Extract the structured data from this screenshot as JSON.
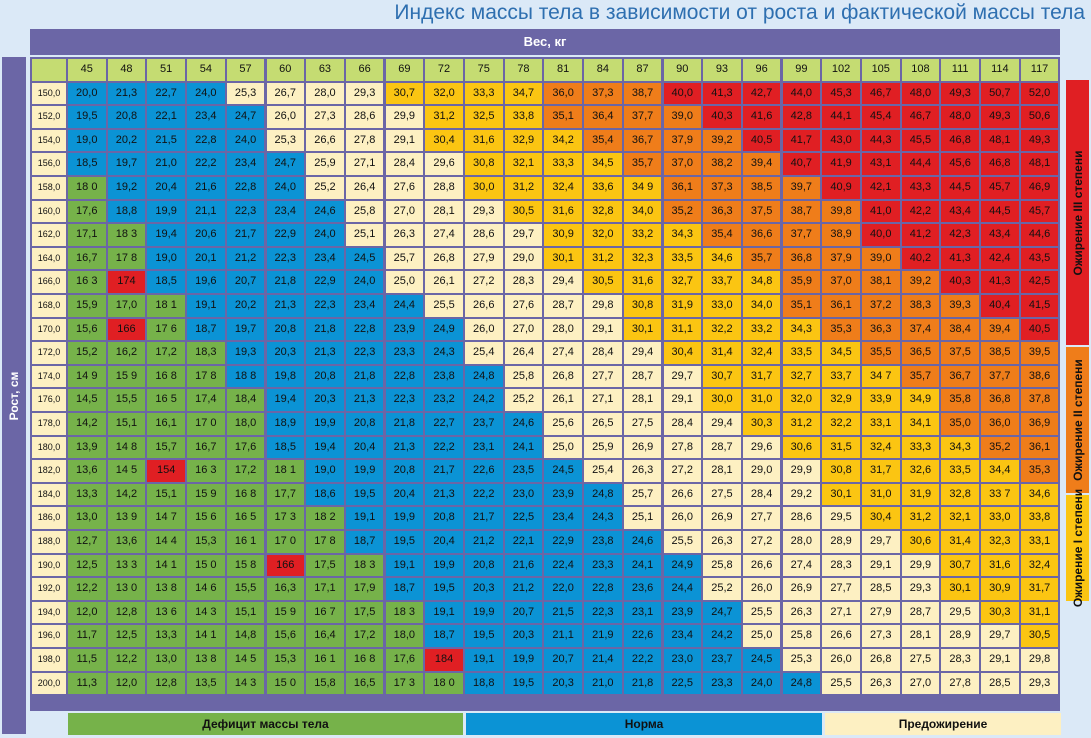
{
  "title": "Индекс массы тела в зависимости от роста и фактической массы тела",
  "x_axis_label": "Вес, кг",
  "y_axis_label": "Рост, см",
  "legend_bottom": [
    {
      "label": "Дефицит массы тела",
      "color": "#76b24a"
    },
    {
      "label": "Норма",
      "color": "#0b93d5"
    },
    {
      "label": "Предожирение",
      "color": "#fdf0c2"
    }
  ],
  "legend_right": [
    {
      "label": "Ожирение III степени",
      "color": "#e01f23"
    },
    {
      "label": "Ожирение II степени",
      "color": "#ef7d1a"
    },
    {
      "label": "Ожирение I степени",
      "color": "#fbc512"
    }
  ],
  "colors": {
    "deficit": "#76b24a",
    "normal": "#0b93d5",
    "preobese": "#fdf0c2",
    "obese1": "#fbc512",
    "obese2": "#ef7d1a",
    "obese3": "#e01f23",
    "header": "#c5dc72",
    "frame": "#6b66a6"
  },
  "chart_data": {
    "type": "heatmap",
    "x": [
      "45",
      "48",
      "51",
      "54",
      "57",
      "60",
      "63",
      "66",
      "69",
      "72",
      "75",
      "78",
      "81",
      "84",
      "87",
      "90",
      "93",
      "96",
      "99",
      "102",
      "105",
      "108",
      "111",
      "114",
      "117"
    ],
    "y": [
      "150,0",
      "152,0",
      "154,0",
      "156,0",
      "158,0",
      "160,0",
      "162,0",
      "164,0",
      "166,0",
      "168,0",
      "170,0",
      "172,0",
      "174,0",
      "176,0",
      "178,0",
      "180,0",
      "182,0",
      "184,0",
      "186,0",
      "188,0",
      "190,0",
      "192,0",
      "194,0",
      "196,0",
      "198,0",
      "200,0"
    ],
    "values": [
      [
        "20,0",
        "21,3",
        "22,7",
        "24,0",
        "25,3",
        "26,7",
        "28,0",
        "29,3",
        "30,7",
        "32,0",
        "33,3",
        "34,7",
        "36,0",
        "37,3",
        "38,7",
        "40,0",
        "41,3",
        "42,7",
        "44,0",
        "45,3",
        "46,7",
        "48,0",
        "49,3",
        "50,7",
        "52,0"
      ],
      [
        "19,5",
        "20,8",
        "22,1",
        "23,4",
        "24,7",
        "26,0",
        "27,3",
        "28,6",
        "29,9",
        "31,2",
        "32,5",
        "33,8",
        "35,1",
        "36,4",
        "37,7",
        "39,0",
        "40,3",
        "41,6",
        "42,8",
        "44,1",
        "45,4",
        "46,7",
        "48,0",
        "49,3",
        "50,6"
      ],
      [
        "19,0",
        "20,2",
        "21,5",
        "22,8",
        "24,0",
        "25,3",
        "26,6",
        "27,8",
        "29,1",
        "30,4",
        "31,6",
        "32,9",
        "34,2",
        "35,4",
        "36,7",
        "37,9",
        "39,2",
        "40,5",
        "41,7",
        "43,0",
        "44,3",
        "45,5",
        "46,8",
        "48,1",
        "49,3"
      ],
      [
        "18,5",
        "19,7",
        "21,0",
        "22,2",
        "23,4",
        "24,7",
        "25,9",
        "27,1",
        "28,4",
        "29,6",
        "30,8",
        "32,1",
        "33,3",
        "34,5",
        "35,7",
        "37,0",
        "38,2",
        "39,4",
        "40,7",
        "41,9",
        "43,1",
        "44,4",
        "45,6",
        "46,8",
        "48,1"
      ],
      [
        "18 0",
        "19,2",
        "20,4",
        "21,6",
        "22,8",
        "24,0",
        "25,2",
        "26,4",
        "27,6",
        "28,8",
        "30,0",
        "31,2",
        "32,4",
        "33,6",
        "34 9",
        "36,1",
        "37,3",
        "38,5",
        "39,7",
        "40,9",
        "42,1",
        "43,3",
        "44,5",
        "45,7",
        "46,9"
      ],
      [
        "17,6",
        "18,8",
        "19,9",
        "21,1",
        "22,3",
        "23,4",
        "24,6",
        "25,8",
        "27,0",
        "28,1",
        "29,3",
        "30,5",
        "31,6",
        "32,8",
        "34,0",
        "35,2",
        "36,3",
        "37,5",
        "38,7",
        "39,8",
        "41,0",
        "42,2",
        "43,4",
        "44,5",
        "45,7"
      ],
      [
        "17,1",
        "18 3",
        "19,4",
        "20,6",
        "21,7",
        "22,9",
        "24,0",
        "25,1",
        "26,3",
        "27,4",
        "28,6",
        "29,7",
        "30,9",
        "32,0",
        "33,2",
        "34,3",
        "35,4",
        "36,6",
        "37,7",
        "38,9",
        "40,0",
        "41,2",
        "42,3",
        "43,4",
        "44,6"
      ],
      [
        "16,7",
        "17 8",
        "19,0",
        "20,1",
        "21,2",
        "22,3",
        "23,4",
        "24,5",
        "25,7",
        "26,8",
        "27,9",
        "29,0",
        "30,1",
        "31,2",
        "32,3",
        "33,5",
        "34,6",
        "35,7",
        "36,8",
        "37,9",
        "39,0",
        "40,2",
        "41,3",
        "42,4",
        "43,5"
      ],
      [
        "16 3",
        "174",
        "18,5",
        "19,6",
        "20,7",
        "21,8",
        "22,9",
        "24,0",
        "25,0",
        "26,1",
        "27,2",
        "28,3",
        "29,4",
        "30,5",
        "31,6",
        "32,7",
        "33,7",
        "34,8",
        "35,9",
        "37,0",
        "38,1",
        "39,2",
        "40,3",
        "41,3",
        "42,5"
      ],
      [
        "15,9",
        "17,0",
        "18 1",
        "19,1",
        "20,2",
        "21,3",
        "22,3",
        "23,4",
        "24,4",
        "25,5",
        "26,6",
        "27,6",
        "28,7",
        "29,8",
        "30,8",
        "31,9",
        "33,0",
        "34,0",
        "35,1",
        "36,1",
        "37,2",
        "38,3",
        "39,3",
        "40,4",
        "41,5"
      ],
      [
        "15,6",
        "166",
        "17 6",
        "18,7",
        "19,7",
        "20,8",
        "21,8",
        "22,8",
        "23,9",
        "24,9",
        "26,0",
        "27,0",
        "28,0",
        "29,1",
        "30,1",
        "31,1",
        "32,2",
        "33,2",
        "34,3",
        "35,3",
        "36,3",
        "37,4",
        "38,4",
        "39,4",
        "40,5"
      ],
      [
        "15,2",
        "16,2",
        "17,2",
        "18,3",
        "19,3",
        "20,3",
        "21,3",
        "22,3",
        "23,3",
        "24,3",
        "25,4",
        "26,4",
        "27,4",
        "28,4",
        "29,4",
        "30,4",
        "31,4",
        "32,4",
        "33,5",
        "34,5",
        "35,5",
        "36,5",
        "37,5",
        "38,5",
        "39,5"
      ],
      [
        "14 9",
        "15 9",
        "16 8",
        "17 8",
        "18 8",
        "19,8",
        "20,8",
        "21,8",
        "22,8",
        "23,8",
        "24,8",
        "25,8",
        "26,8",
        "27,7",
        "28,7",
        "29,7",
        "30,7",
        "31,7",
        "32,7",
        "33,7",
        "34 7",
        "35,7",
        "36,7",
        "37,7",
        "38,6"
      ],
      [
        "14,5",
        "15,5",
        "16 5",
        "17,4",
        "18,4",
        "19,4",
        "20,3",
        "21,3",
        "22,3",
        "23,2",
        "24,2",
        "25,2",
        "26,1",
        "27,1",
        "28,1",
        "29,1",
        "30,0",
        "31,0",
        "32,0",
        "32,9",
        "33,9",
        "34,9",
        "35,8",
        "36,8",
        "37,8"
      ],
      [
        "14,2",
        "15,1",
        "16,1",
        "17 0",
        "18,0",
        "18,9",
        "19,9",
        "20,8",
        "21,8",
        "22,7",
        "23,7",
        "24,6",
        "25,6",
        "26,5",
        "27,5",
        "28,4",
        "29,4",
        "30,3",
        "31,2",
        "32,2",
        "33,1",
        "34,1",
        "35,0",
        "36,0",
        "36,9"
      ],
      [
        "13,9",
        "14 8",
        "15,7",
        "16,7",
        "17,6",
        "18,5",
        "19,4",
        "20,4",
        "21,3",
        "22,2",
        "23,1",
        "24,1",
        "25,0",
        "25,9",
        "26,9",
        "27,8",
        "28,7",
        "29,6",
        "30,6",
        "31,5",
        "32,4",
        "33,3",
        "34,3",
        "35,2",
        "36,1"
      ],
      [
        "13,6",
        "14 5",
        "154",
        "16 3",
        "17,2",
        "18 1",
        "19,0",
        "19,9",
        "20,8",
        "21,7",
        "22,6",
        "23,5",
        "24,5",
        "25,4",
        "26,3",
        "27,2",
        "28,1",
        "29,0",
        "29,9",
        "30,8",
        "31,7",
        "32,6",
        "33,5",
        "34,4",
        "35,3"
      ],
      [
        "13,3",
        "14,2",
        "15,1",
        "15 9",
        "16 8",
        "17,7",
        "18,6",
        "19,5",
        "20,4",
        "21,3",
        "22,2",
        "23,0",
        "23,9",
        "24,8",
        "25,7",
        "26,6",
        "27,5",
        "28,4",
        "29,2",
        "30,1",
        "31,0",
        "31,9",
        "32,8",
        "33 7",
        "34,6"
      ],
      [
        "13,0",
        "13 9",
        "14 7",
        "15 6",
        "16 5",
        "17 3",
        "18 2",
        "19,1",
        "19,9",
        "20,8",
        "21,7",
        "22,5",
        "23,4",
        "24,3",
        "25,1",
        "26,0",
        "26,9",
        "27,7",
        "28,6",
        "29,5",
        "30,4",
        "31,2",
        "32,1",
        "33,0",
        "33,8"
      ],
      [
        "12,7",
        "13,6",
        "14 4",
        "15,3",
        "16 1",
        "17 0",
        "17 8",
        "18,7",
        "19,5",
        "20,4",
        "21,2",
        "22,1",
        "22,9",
        "23,8",
        "24,6",
        "25,5",
        "26,3",
        "27,2",
        "28,0",
        "28,9",
        "29,7",
        "30,6",
        "31,4",
        "32,3",
        "33,1"
      ],
      [
        "12,5",
        "13 3",
        "14 1",
        "15 0",
        "15 8",
        "166",
        "17,5",
        "18 3",
        "19,1",
        "19,9",
        "20,8",
        "21,6",
        "22,4",
        "23,3",
        "24,1",
        "24,9",
        "25,8",
        "26,6",
        "27,4",
        "28,3",
        "29,1",
        "29,9",
        "30,7",
        "31,6",
        "32,4"
      ],
      [
        "12,2",
        "13 0",
        "13 8",
        "14 6",
        "15,5",
        "16,3",
        "17,1",
        "17,9",
        "18,7",
        "19,5",
        "20,3",
        "21,2",
        "22,0",
        "22,8",
        "23,6",
        "24,4",
        "25,2",
        "26,0",
        "26,9",
        "27,7",
        "28,5",
        "29,3",
        "30,1",
        "30,9",
        "31,7"
      ],
      [
        "12,0",
        "12,8",
        "13 6",
        "14 3",
        "15,1",
        "15 9",
        "16 7",
        "17,5",
        "18 3",
        "19,1",
        "19,9",
        "20,7",
        "21,5",
        "22,3",
        "23,1",
        "23,9",
        "24,7",
        "25,5",
        "26,3",
        "27,1",
        "27,9",
        "28,7",
        "29,5",
        "30,3",
        "31,1"
      ],
      [
        "11,7",
        "12,5",
        "13,3",
        "14 1",
        "14,8",
        "15,6",
        "16,4",
        "17,2",
        "18,0",
        "18,7",
        "19,5",
        "20,3",
        "21,1",
        "21,9",
        "22,6",
        "23,4",
        "24,2",
        "25,0",
        "25,8",
        "26,6",
        "27,3",
        "28,1",
        "28,9",
        "29,7",
        "30,5"
      ],
      [
        "11,5",
        "12,2",
        "13,0",
        "13 8",
        "14 5",
        "15,3",
        "16 1",
        "16 8",
        "17,6",
        "184",
        "19,1",
        "19,9",
        "20,7",
        "21,4",
        "22,2",
        "23,0",
        "23,7",
        "24,5",
        "25,3",
        "26,0",
        "26,8",
        "27,5",
        "28,3",
        "29,1",
        "29,8"
      ],
      [
        "11,3",
        "12,0",
        "12,8",
        "13,5",
        "14 3",
        "15 0",
        "15,8",
        "16,5",
        "17 3",
        "18 0",
        "18,8",
        "19,5",
        "20,3",
        "21,0",
        "21,8",
        "22,5",
        "23,3",
        "24,0",
        "24,8",
        "25,5",
        "26,3",
        "27,0",
        "27,8",
        "28,5",
        "29,3"
      ]
    ],
    "categories_by_row": [
      "NNNN_______O123333333333",
      "NNNNN______O123333333333",
      "NNNNN______O123333333333"
    ]
  }
}
